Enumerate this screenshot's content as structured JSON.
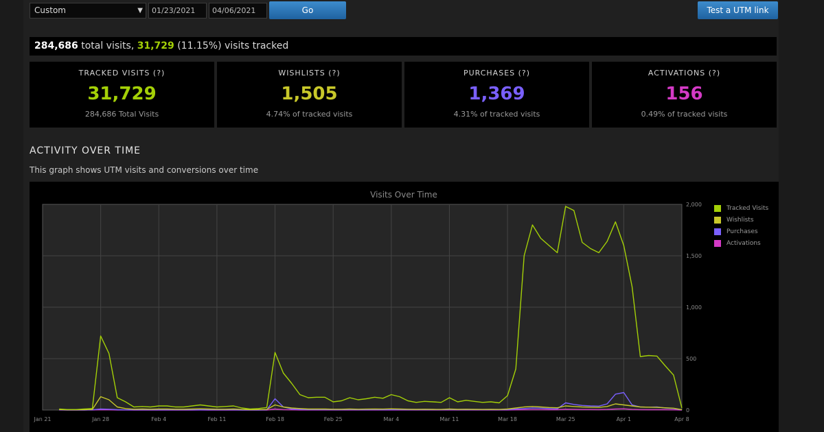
{
  "controls": {
    "range_select": "Custom",
    "start_date": "01/23/2021",
    "end_date": "04/06/2021",
    "go_label": "Go",
    "test_utm_label": "Test a UTM link"
  },
  "summary": {
    "total_visits": "284,686",
    "total_visits_text": "total visits,",
    "tracked": "31,729",
    "tracked_pct": "(11.15%)",
    "tracked_text": "visits tracked"
  },
  "cards": [
    {
      "title": "TRACKED VISITS (?)",
      "value": "31,729",
      "sub": "284,686 Total Visits",
      "color": "#a4d007"
    },
    {
      "title": "WISHLISTS (?)",
      "value": "1,505",
      "sub": "4.74% of tracked visits",
      "color": "#c8c82a"
    },
    {
      "title": "PURCHASES (?)",
      "value": "1,369",
      "sub": "4.31% of tracked visits",
      "color": "#7a60ff"
    },
    {
      "title": "ACTIVATIONS (?)",
      "value": "156",
      "sub": "0.49% of tracked visits",
      "color": "#d43ac6"
    }
  ],
  "section": {
    "title": "ACTIVITY OVER TIME",
    "description": "This graph shows UTM visits and conversions over time"
  },
  "chart_data": {
    "type": "line",
    "title": "Visits Over Time",
    "x_tick_labels": [
      "Jan 21",
      "Jan 28",
      "Feb 4",
      "Feb 11",
      "Feb 18",
      "Feb 25",
      "Mar 4",
      "Mar 11",
      "Mar 18",
      "Mar 25",
      "Apr 1",
      "Apr 8"
    ],
    "y_tick_labels": [
      "0",
      "500",
      "1,000",
      "1,500",
      "2,000"
    ],
    "ylim": [
      0,
      2000
    ],
    "grid": true,
    "legend_position": "right",
    "series": [
      {
        "name": "Tracked Visits",
        "color": "#a4d007",
        "values": [
          10,
          5,
          5,
          10,
          15,
          720,
          550,
          120,
          80,
          30,
          35,
          30,
          40,
          40,
          30,
          30,
          40,
          50,
          40,
          30,
          35,
          40,
          20,
          10,
          15,
          25,
          560,
          360,
          260,
          150,
          120,
          125,
          125,
          80,
          90,
          120,
          100,
          110,
          125,
          115,
          150,
          130,
          90,
          75,
          85,
          80,
          75,
          120,
          80,
          95,
          85,
          75,
          80,
          70,
          140,
          400,
          1500,
          1800,
          1670,
          1600,
          1530,
          1980,
          1940,
          1630,
          1570,
          1530,
          1640,
          1830,
          1600,
          1200,
          520,
          530,
          525,
          430,
          340,
          20
        ]
      },
      {
        "name": "Wishlists",
        "color": "#c8c82a",
        "values": [
          5,
          3,
          3,
          4,
          6,
          130,
          100,
          30,
          15,
          8,
          10,
          8,
          10,
          10,
          8,
          8,
          10,
          12,
          10,
          8,
          8,
          10,
          6,
          4,
          5,
          6,
          50,
          30,
          20,
          15,
          10,
          10,
          10,
          8,
          8,
          10,
          8,
          9,
          10,
          9,
          12,
          10,
          8,
          7,
          8,
          7,
          6,
          10,
          7,
          8,
          7,
          6,
          7,
          6,
          10,
          20,
          30,
          35,
          30,
          25,
          22,
          40,
          35,
          30,
          28,
          26,
          35,
          60,
          50,
          40,
          30,
          28,
          26,
          22,
          18,
          4
        ]
      },
      {
        "name": "Purchases",
        "color": "#7a60ff",
        "values": [
          2,
          1,
          1,
          1,
          2,
          10,
          8,
          3,
          2,
          2,
          2,
          2,
          2,
          2,
          2,
          2,
          2,
          3,
          2,
          2,
          2,
          2,
          1,
          1,
          1,
          2,
          110,
          30,
          10,
          6,
          4,
          4,
          4,
          3,
          3,
          4,
          3,
          3,
          4,
          3,
          4,
          4,
          3,
          3,
          3,
          3,
          3,
          4,
          3,
          3,
          3,
          3,
          3,
          3,
          4,
          10,
          15,
          20,
          18,
          15,
          12,
          70,
          55,
          45,
          40,
          38,
          60,
          155,
          170,
          50,
          30,
          28,
          30,
          20,
          15,
          2
        ]
      },
      {
        "name": "Activations",
        "color": "#d43ac6",
        "values": [
          1,
          0,
          0,
          0,
          1,
          3,
          2,
          1,
          1,
          0,
          0,
          0,
          0,
          0,
          0,
          0,
          0,
          1,
          0,
          0,
          0,
          0,
          0,
          0,
          0,
          0,
          10,
          4,
          2,
          1,
          1,
          1,
          1,
          1,
          1,
          1,
          1,
          1,
          1,
          1,
          1,
          1,
          1,
          1,
          1,
          1,
          1,
          1,
          1,
          1,
          1,
          1,
          1,
          1,
          1,
          2,
          3,
          4,
          4,
          3,
          3,
          8,
          6,
          5,
          5,
          4,
          6,
          10,
          12,
          6,
          4,
          3,
          3,
          3,
          2,
          0
        ]
      }
    ]
  }
}
